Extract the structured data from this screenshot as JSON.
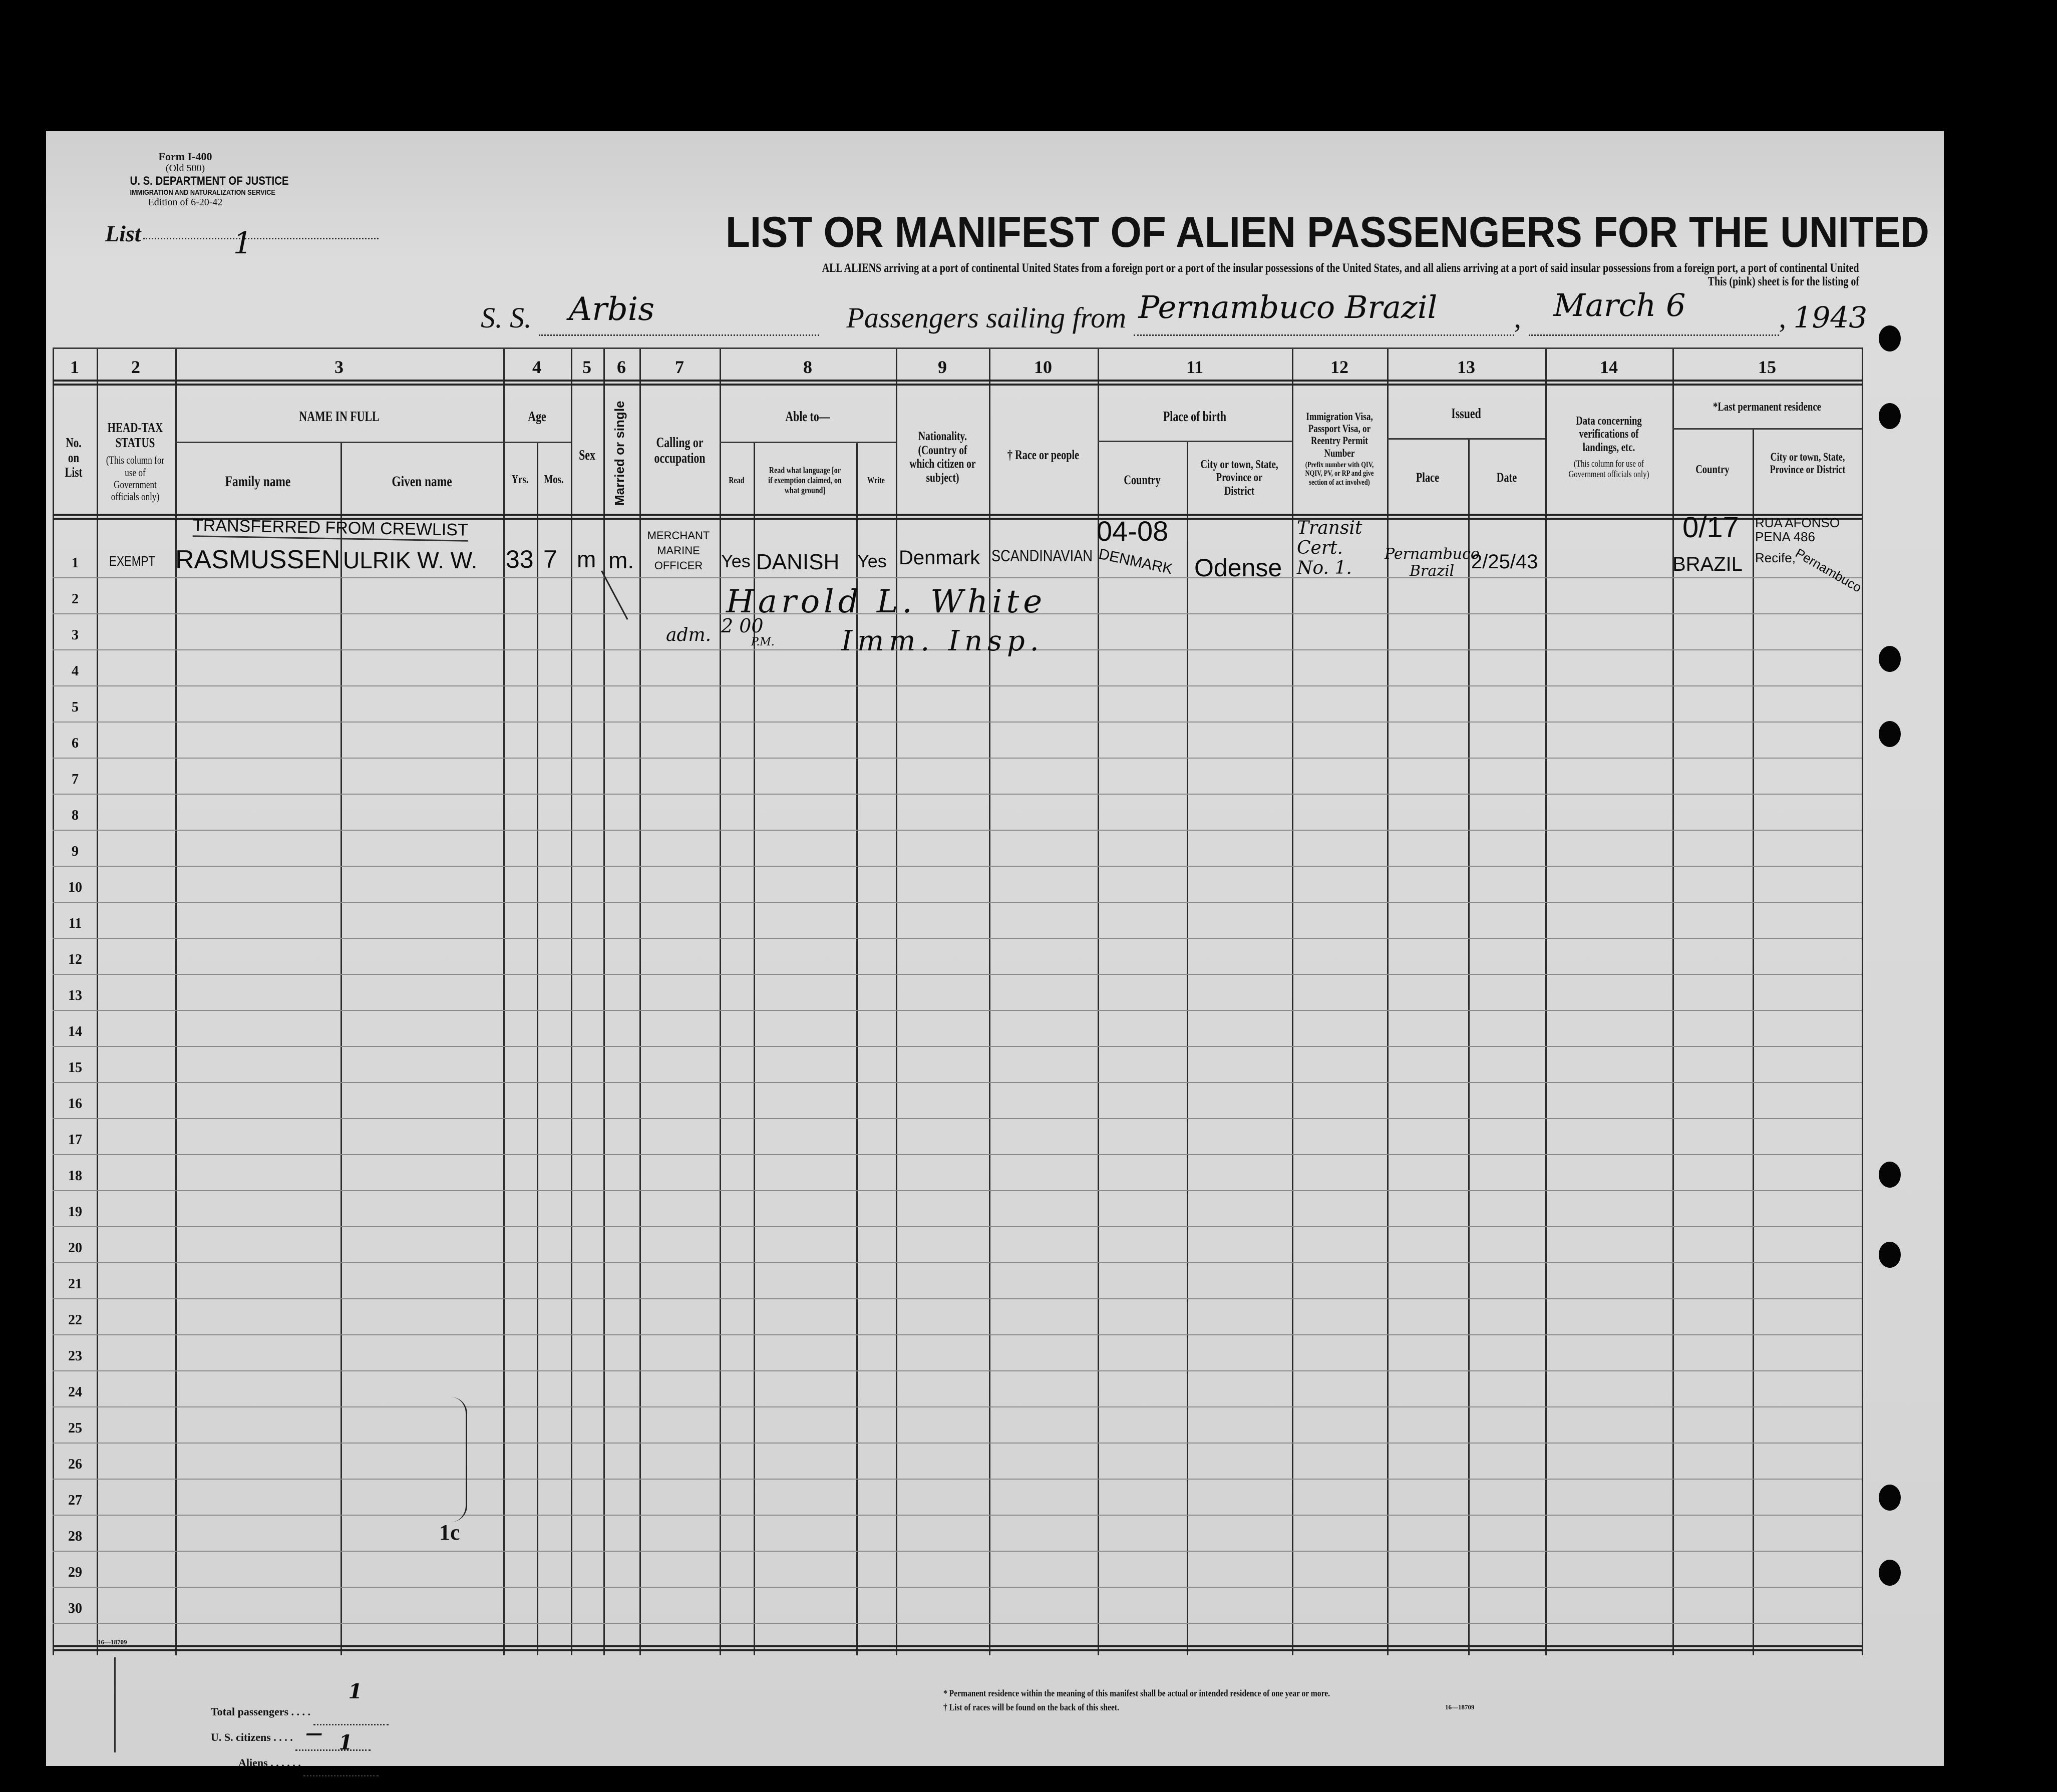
{
  "form": {
    "form_number": "Form I-400",
    "old_number": "(Old 500)",
    "department": "U. S. DEPARTMENT OF JUSTICE",
    "service": "IMMIGRATION AND NATURALIZATION SERVICE",
    "edition": "Edition of 6-20-42",
    "list_label": "List",
    "list_value": "1"
  },
  "title": "LIST OR MANIFEST OF ALIEN PASSENGERS FOR THE UNITED",
  "subtitle_line1": "ALL ALIENS arriving at a port of continental United States from a foreign port or a port of the insular possessions of the United States, and all aliens arriving at a port of said insular possessions from a foreign port, a port of continental United",
  "subtitle_line2": "This (pink) sheet is for the listing of",
  "voyage": {
    "ss_label": "S. S.",
    "ship": "Arbis",
    "sailing_label": "Passengers sailing from",
    "port": "Pernambuco Brazil",
    "date": "March 6",
    "year": "1943"
  },
  "column_numbers": [
    "1",
    "2",
    "3",
    "4",
    "5",
    "6",
    "7",
    "8",
    "9",
    "10",
    "11",
    "12",
    "13",
    "14",
    "15"
  ],
  "headers": {
    "no_on_list": "No. on List",
    "head_tax": "HEAD-TAX STATUS",
    "head_tax_note": "(This column for use of Government officials only)",
    "name_in_full": "NAME IN FULL",
    "family_name": "Family name",
    "given_name": "Given name",
    "age": "Age",
    "yrs": "Yrs.",
    "mos": "Mos.",
    "sex": "Sex",
    "married": "Married or single",
    "calling": "Calling or occupation",
    "able_to": "Able to—",
    "read": "Read",
    "read_language": "Read what language [or if exemption claimed, on what ground]",
    "write": "Write",
    "nationality": "Nationality. (Country of which citizen or subject)",
    "race": "† Race or people",
    "place_of_birth": "Place of birth",
    "birth_country": "Country",
    "birth_city": "City or town, State, Province or District",
    "visa": "Immigration Visa, Passport Visa, or Reentry Permit Number",
    "visa_note": "(Prefix number with QIV, NQIV, PV, or RP and give section of act involved)",
    "issued": "Issued",
    "issued_place": "Place",
    "issued_date": "Date",
    "verification": "Data concerning verifications of landings, etc.",
    "verification_note": "(This column for use of Government officials only)",
    "last_residence": "*Last permanent residence",
    "res_country": "Country",
    "res_city": "City or town, State, Province or District"
  },
  "row_numbers": [
    "1",
    "2",
    "3",
    "4",
    "5",
    "6",
    "7",
    "8",
    "9",
    "10",
    "11",
    "12",
    "13",
    "14",
    "15",
    "16",
    "17",
    "18",
    "19",
    "20",
    "21",
    "22",
    "23",
    "24",
    "25",
    "26",
    "27",
    "28",
    "29",
    "30"
  ],
  "entry": {
    "note": "TRANSFERRED FROM CREWLIST",
    "head_tax": "EXEMPT",
    "family_name": "RASMUSSEN",
    "given_name": "ULRIK W. W.",
    "age_yrs": "33",
    "age_mos": "7",
    "sex": "m",
    "married": "m.",
    "occupation": [
      "MERCHANT",
      "MARINE",
      "OFFICER"
    ],
    "read": "Yes",
    "language": "DANISH",
    "write": "Yes",
    "nationality": "Denmark",
    "race": "SCANDINAVIAN",
    "birth_code": "04-08",
    "birth_country": "DENMARK",
    "birth_city": "Odense",
    "visa": [
      "Transit",
      "Cert.",
      "No. 1."
    ],
    "issued_place": [
      "Pernambuco",
      "Brazil"
    ],
    "issued_date": "2/25/43",
    "res_code": "0/17",
    "res_country": "BRAZIL",
    "res_city": [
      "RUA AFONSO",
      "PENA 486",
      "Recife,",
      "Pernambuco"
    ]
  },
  "inspection": {
    "signature": "Harold L. White",
    "admitted": "adm.",
    "time": "2 00",
    "time_suffix": "P.M.",
    "title": "Imm. Insp."
  },
  "stamp_mark": "1c",
  "form_code": "16—18709",
  "totals": {
    "total_label": "Total passengers",
    "total_value": "1",
    "citizens_label": "U. S. citizens",
    "citizens_value": "—",
    "aliens_label": "Aliens",
    "aliens_value": "1"
  },
  "footnotes": {
    "residence": "* Permanent residence within the meaning of this manifest shall be actual or intended residence of one year or more.",
    "races": "† List of races will be found on the back of this sheet.",
    "code": "16—18709"
  },
  "colors": {
    "paper": "#d9d9d9",
    "ink": "#111111",
    "background": "#000000"
  }
}
